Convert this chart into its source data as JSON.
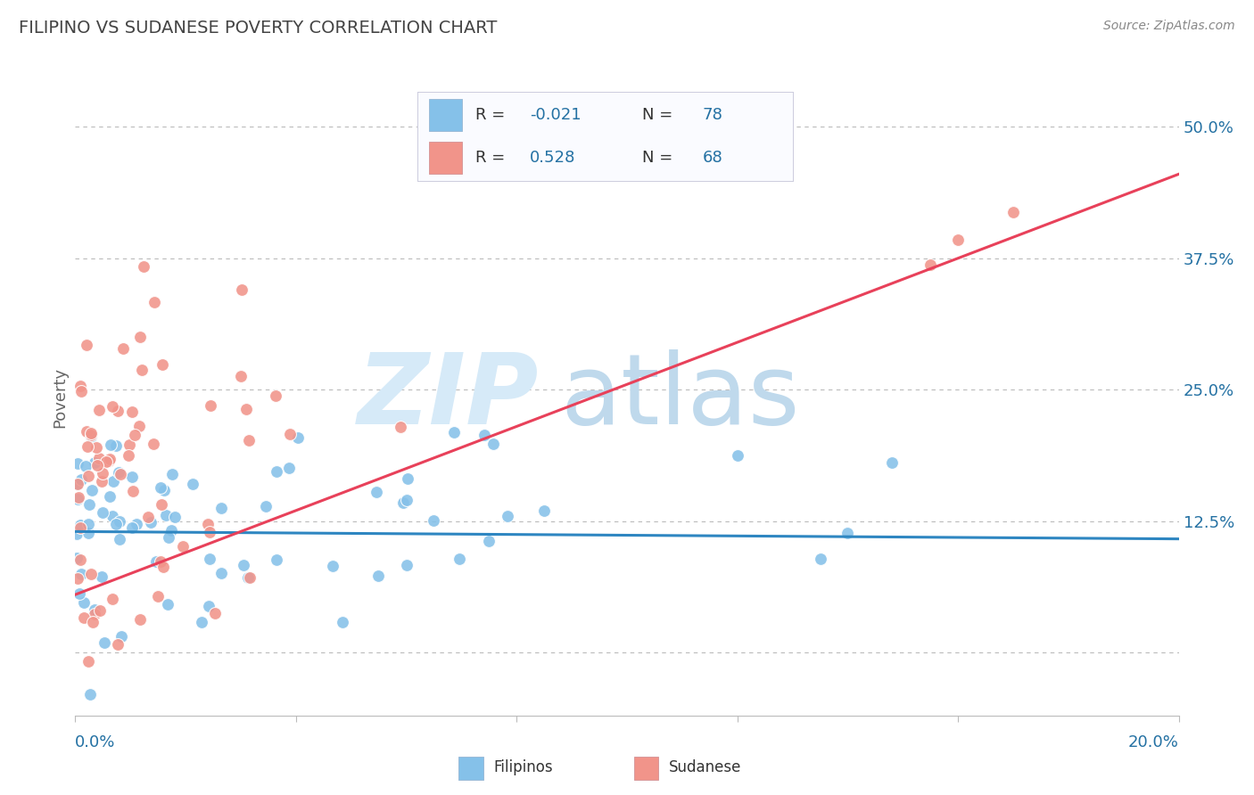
{
  "title": "FILIPINO VS SUDANESE POVERTY CORRELATION CHART",
  "source": "Source: ZipAtlas.com",
  "ylabel": "Poverty",
  "yticks": [
    0.0,
    0.125,
    0.25,
    0.375,
    0.5
  ],
  "ytick_labels": [
    "",
    "12.5%",
    "25.0%",
    "37.5%",
    "50.0%"
  ],
  "xlim": [
    0.0,
    0.2
  ],
  "ylim": [
    -0.06,
    0.545
  ],
  "filipino_R": -0.021,
  "filipino_N": 78,
  "sudanese_R": 0.528,
  "sudanese_N": 68,
  "filipino_color": "#85C1E9",
  "sudanese_color": "#F1948A",
  "filipino_line_color": "#2E86C1",
  "sudanese_line_color": "#E8415A",
  "watermark_zip_color": "#D6EAF8",
  "watermark_atlas_color": "#BFD9EC",
  "background_color": "#FFFFFF",
  "grid_color": "#BBBBBB",
  "title_color": "#444444",
  "axis_label_color": "#2471A3",
  "legend_r_color": "#2471A3",
  "seed": 99,
  "fil_line_y0": 0.115,
  "fil_line_y1": 0.108,
  "sud_line_y0": 0.055,
  "sud_line_y1": 0.455
}
